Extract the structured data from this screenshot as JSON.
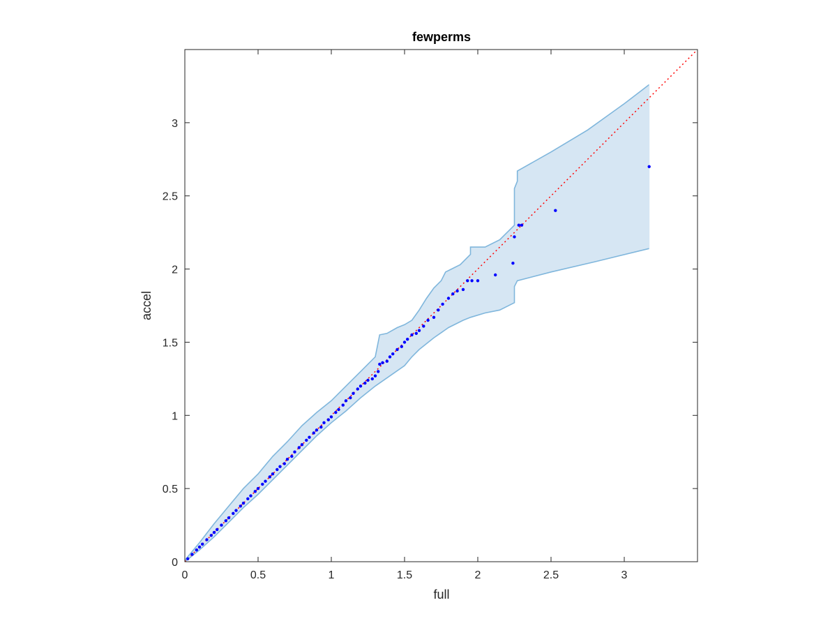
{
  "chart_data": {
    "type": "scatter",
    "title": "fewperms",
    "xlabel": "full",
    "ylabel": "accel",
    "xlim": [
      0,
      3.5
    ],
    "ylim": [
      0,
      3.5
    ],
    "xticks": [
      "0",
      "0.5",
      "1",
      "1.5",
      "2",
      "2.5",
      "3"
    ],
    "yticks": [
      "0",
      "0.5",
      "1",
      "1.5",
      "2",
      "2.5",
      "3"
    ],
    "grid": false,
    "colors": {
      "points": "#0000ff",
      "reference_line": "#ff0000",
      "band_fill": "#d6e6f3",
      "band_edge": "#7fb6dc",
      "axes": "#262626"
    },
    "reference_line": {
      "style": "dotted",
      "x": [
        0,
        3.5
      ],
      "y": [
        0,
        3.5
      ]
    },
    "band": {
      "upper": [
        [
          0,
          0.01
        ],
        [
          0.1,
          0.13
        ],
        [
          0.2,
          0.26
        ],
        [
          0.3,
          0.38
        ],
        [
          0.4,
          0.5
        ],
        [
          0.5,
          0.6
        ],
        [
          0.6,
          0.72
        ],
        [
          0.7,
          0.82
        ],
        [
          0.8,
          0.93
        ],
        [
          0.9,
          1.02
        ],
        [
          1.0,
          1.1
        ],
        [
          1.1,
          1.2
        ],
        [
          1.2,
          1.3
        ],
        [
          1.3,
          1.4
        ],
        [
          1.33,
          1.55
        ],
        [
          1.38,
          1.56
        ],
        [
          1.45,
          1.6
        ],
        [
          1.5,
          1.62
        ],
        [
          1.55,
          1.65
        ],
        [
          1.6,
          1.72
        ],
        [
          1.65,
          1.8
        ],
        [
          1.7,
          1.87
        ],
        [
          1.75,
          1.92
        ],
        [
          1.78,
          1.98
        ],
        [
          1.82,
          2.0
        ],
        [
          1.88,
          2.03
        ],
        [
          1.95,
          2.1
        ],
        [
          1.95,
          2.15
        ],
        [
          2.05,
          2.15
        ],
        [
          2.15,
          2.2
        ],
        [
          2.25,
          2.3
        ],
        [
          2.25,
          2.55
        ],
        [
          2.27,
          2.6
        ],
        [
          2.27,
          2.67
        ],
        [
          2.5,
          2.8
        ],
        [
          2.75,
          2.95
        ],
        [
          3.0,
          3.13
        ],
        [
          3.17,
          3.26
        ]
      ],
      "lower": [
        [
          0,
          0.0
        ],
        [
          0.1,
          0.08
        ],
        [
          0.2,
          0.17
        ],
        [
          0.3,
          0.27
        ],
        [
          0.4,
          0.37
        ],
        [
          0.5,
          0.46
        ],
        [
          0.6,
          0.56
        ],
        [
          0.7,
          0.66
        ],
        [
          0.8,
          0.76
        ],
        [
          0.9,
          0.86
        ],
        [
          1.0,
          0.95
        ],
        [
          1.1,
          1.03
        ],
        [
          1.2,
          1.12
        ],
        [
          1.3,
          1.2
        ],
        [
          1.4,
          1.27
        ],
        [
          1.5,
          1.34
        ],
        [
          1.55,
          1.4
        ],
        [
          1.6,
          1.45
        ],
        [
          1.7,
          1.53
        ],
        [
          1.8,
          1.6
        ],
        [
          1.9,
          1.65
        ],
        [
          1.95,
          1.67
        ],
        [
          2.05,
          1.7
        ],
        [
          2.15,
          1.72
        ],
        [
          2.25,
          1.77
        ],
        [
          2.25,
          1.88
        ],
        [
          2.27,
          1.92
        ],
        [
          2.5,
          1.98
        ],
        [
          2.8,
          2.05
        ],
        [
          3.17,
          2.14
        ]
      ]
    },
    "points": [
      [
        0.02,
        0.02
      ],
      [
        0.05,
        0.05
      ],
      [
        0.08,
        0.08
      ],
      [
        0.1,
        0.1
      ],
      [
        0.12,
        0.12
      ],
      [
        0.15,
        0.15
      ],
      [
        0.18,
        0.18
      ],
      [
        0.2,
        0.2
      ],
      [
        0.22,
        0.22
      ],
      [
        0.25,
        0.25
      ],
      [
        0.28,
        0.28
      ],
      [
        0.3,
        0.3
      ],
      [
        0.33,
        0.33
      ],
      [
        0.35,
        0.35
      ],
      [
        0.38,
        0.38
      ],
      [
        0.4,
        0.4
      ],
      [
        0.43,
        0.43
      ],
      [
        0.45,
        0.45
      ],
      [
        0.48,
        0.48
      ],
      [
        0.5,
        0.5
      ],
      [
        0.53,
        0.53
      ],
      [
        0.55,
        0.55
      ],
      [
        0.58,
        0.58
      ],
      [
        0.6,
        0.6
      ],
      [
        0.63,
        0.63
      ],
      [
        0.65,
        0.65
      ],
      [
        0.68,
        0.67
      ],
      [
        0.7,
        0.7
      ],
      [
        0.73,
        0.72
      ],
      [
        0.75,
        0.75
      ],
      [
        0.78,
        0.78
      ],
      [
        0.8,
        0.8
      ],
      [
        0.83,
        0.83
      ],
      [
        0.85,
        0.85
      ],
      [
        0.88,
        0.88
      ],
      [
        0.9,
        0.9
      ],
      [
        0.93,
        0.92
      ],
      [
        0.95,
        0.95
      ],
      [
        0.98,
        0.97
      ],
      [
        1.0,
        0.99
      ],
      [
        1.03,
        1.02
      ],
      [
        1.05,
        1.04
      ],
      [
        1.08,
        1.07
      ],
      [
        1.1,
        1.1
      ],
      [
        1.13,
        1.12
      ],
      [
        1.15,
        1.15
      ],
      [
        1.18,
        1.18
      ],
      [
        1.2,
        1.2
      ],
      [
        1.23,
        1.22
      ],
      [
        1.25,
        1.24
      ],
      [
        1.28,
        1.25
      ],
      [
        1.3,
        1.27
      ],
      [
        1.32,
        1.3
      ],
      [
        1.33,
        1.35
      ],
      [
        1.35,
        1.36
      ],
      [
        1.38,
        1.37
      ],
      [
        1.4,
        1.4
      ],
      [
        1.42,
        1.42
      ],
      [
        1.45,
        1.45
      ],
      [
        1.48,
        1.47
      ],
      [
        1.5,
        1.5
      ],
      [
        1.52,
        1.52
      ],
      [
        1.55,
        1.55
      ],
      [
        1.58,
        1.56
      ],
      [
        1.6,
        1.58
      ],
      [
        1.63,
        1.61
      ],
      [
        1.66,
        1.65
      ],
      [
        1.7,
        1.67
      ],
      [
        1.73,
        1.72
      ],
      [
        1.76,
        1.76
      ],
      [
        1.8,
        1.8
      ],
      [
        1.83,
        1.83
      ],
      [
        1.86,
        1.85
      ],
      [
        1.9,
        1.86
      ],
      [
        1.93,
        1.92
      ],
      [
        1.96,
        1.92
      ],
      [
        2.0,
        1.92
      ],
      [
        2.12,
        1.96
      ],
      [
        2.24,
        2.04
      ],
      [
        2.25,
        2.22
      ],
      [
        2.28,
        2.3
      ],
      [
        2.3,
        2.3
      ],
      [
        2.53,
        2.4
      ],
      [
        3.17,
        2.7
      ]
    ]
  }
}
